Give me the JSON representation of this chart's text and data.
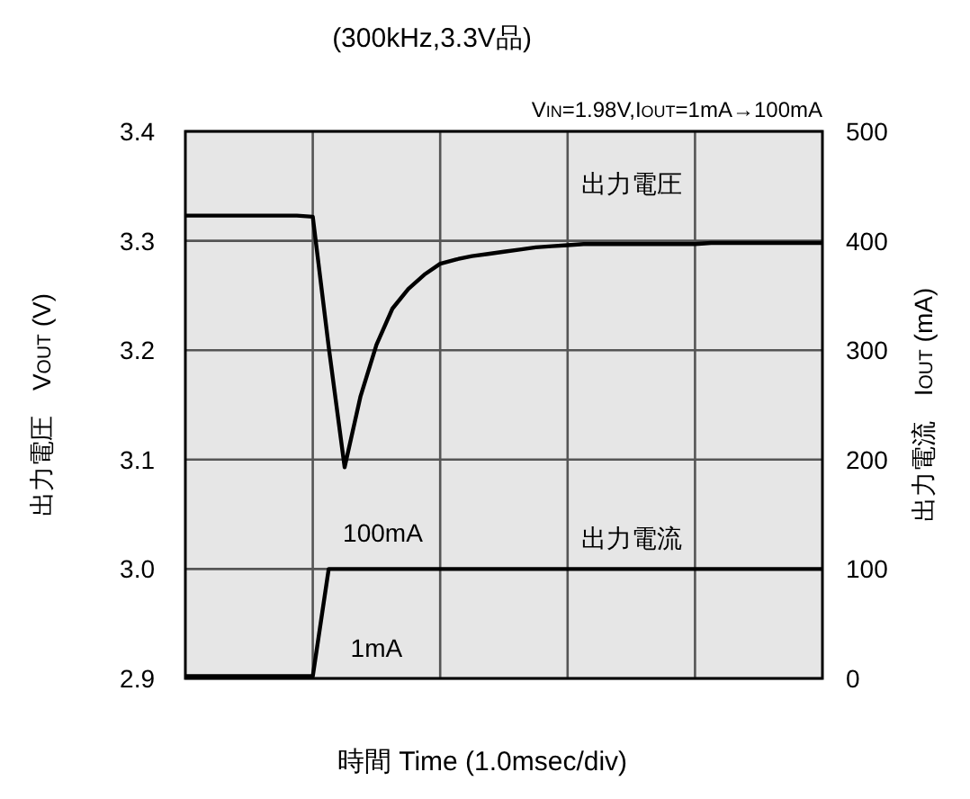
{
  "chart_data": {
    "type": "line",
    "title": "(300kHz,3.3V品)",
    "xlabel": "時間  Time (1.0msec/div)",
    "ylabel": "出力電圧　V$_{OUT}$ (V)",
    "y2label": "出力電流　I$_{OUT}$ (mA)",
    "annotations": [
      "V$_{IN}$=1.98V,I$_{OUT}$=1mA→100mA",
      "100mA",
      "1mA"
    ],
    "categories": [
      null,
      null,
      null,
      null,
      null,
      null,
      null,
      null,
      null,
      null,
      null,
      null,
      null,
      null,
      null,
      null,
      null,
      null,
      null,
      null,
      null,
      null,
      null,
      null,
      null,
      null,
      null,
      null,
      null,
      null,
      null,
      null,
      null,
      null,
      null,
      null,
      null,
      null,
      null,
      null,
      null
    ],
    "ylim": [
      2.9,
      3.4
    ],
    "yticks": [
      {
        "value": 2.9,
        "label": "2.9"
      },
      {
        "value": 3.0,
        "label": "3.0"
      },
      {
        "value": 3.1,
        "label": "3.1"
      },
      {
        "value": 3.2,
        "label": "3.2"
      },
      {
        "value": 3.3,
        "label": "3.3"
      },
      {
        "value": 3.4,
        "label": "3.4"
      }
    ],
    "y2lim": [
      0,
      500
    ],
    "y2ticks": [
      0,
      100,
      200,
      300,
      400,
      500
    ],
    "grid": true,
    "marker": "none",
    "line_style": "solid",
    "series": [
      {
        "name": "出力電圧",
        "color": "#000000",
        "values": [
          3.323,
          3.323,
          3.323,
          3.323,
          3.323,
          3.323,
          3.323,
          3.323,
          3.322,
          3.203,
          3.093,
          3.158,
          3.205,
          3.238,
          3.256,
          3.269,
          3.279,
          3.283,
          3.286,
          3.288,
          3.29,
          3.292,
          3.294,
          3.295,
          3.296,
          3.297,
          3.297,
          3.297,
          3.297,
          3.297,
          3.297,
          3.297,
          3.297,
          3.298,
          3.298,
          3.298,
          3.298,
          3.298,
          3.298,
          3.298,
          3.298
        ]
      },
      {
        "name": "出力電流",
        "color": "#000000",
        "axis": "y2",
        "values": [
          2,
          2,
          2,
          2,
          2,
          2,
          2,
          2,
          2,
          100,
          100,
          100,
          100,
          100,
          100,
          100,
          100,
          100,
          100,
          100,
          100,
          100,
          100,
          100,
          100,
          100,
          100,
          100,
          100,
          100,
          100,
          100,
          100,
          100,
          100,
          100,
          100,
          100,
          100,
          100,
          100
        ]
      }
    ]
  }
}
